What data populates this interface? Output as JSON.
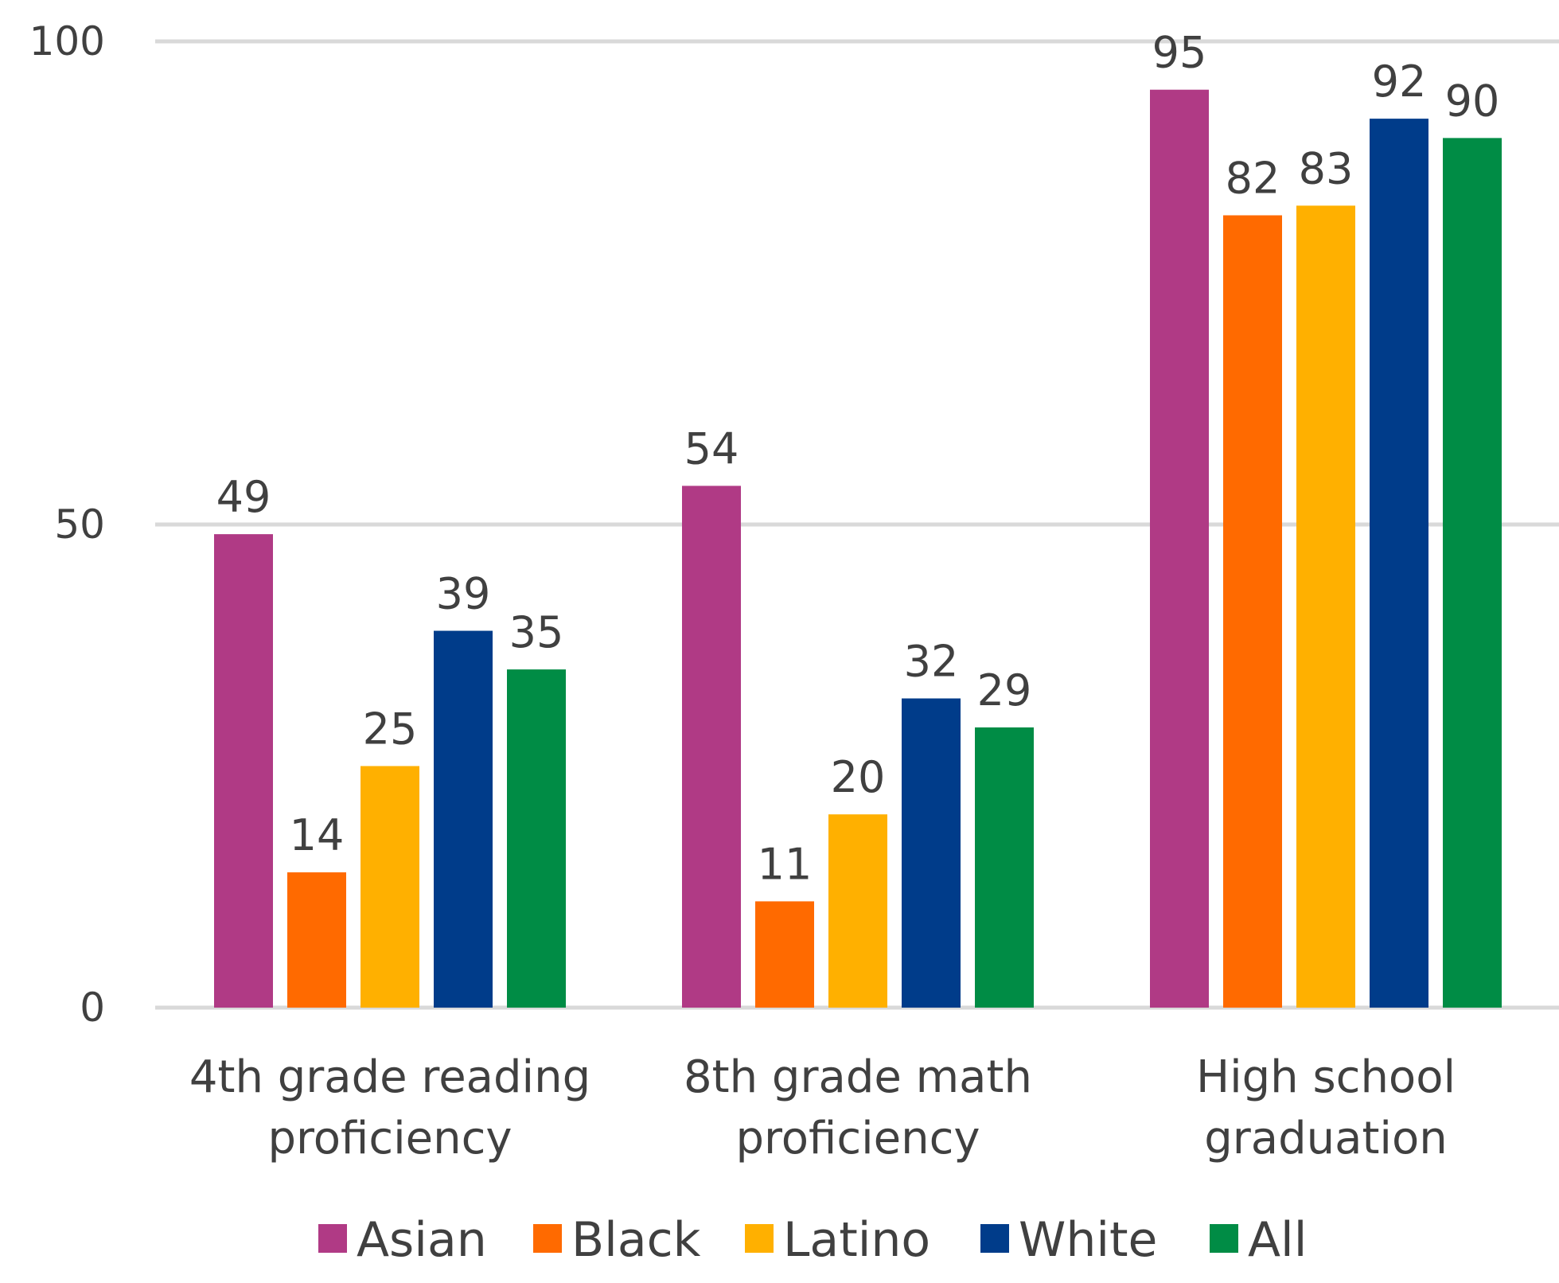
{
  "chart_data": {
    "type": "bar",
    "title": "",
    "xlabel": "",
    "ylabel": "",
    "ylim": [
      0,
      100
    ],
    "yticks": [
      0,
      50,
      100
    ],
    "grid": true,
    "legend_position": "bottom",
    "categories": [
      [
        "4th grade reading",
        "proficiency"
      ],
      [
        "8th grade math",
        "proficiency"
      ],
      [
        "High school",
        "graduation"
      ]
    ],
    "series": [
      {
        "name": "Asian",
        "color": "#b03a85",
        "values": [
          49,
          54,
          95
        ]
      },
      {
        "name": "Black",
        "color": "#ff6a00",
        "values": [
          14,
          11,
          82
        ]
      },
      {
        "name": "Latino",
        "color": "#ffb000",
        "values": [
          25,
          20,
          83
        ]
      },
      {
        "name": "White",
        "color": "#003c8a",
        "values": [
          39,
          32,
          92
        ]
      },
      {
        "name": "All",
        "color": "#008c45",
        "values": [
          35,
          29,
          90
        ]
      }
    ],
    "gridline_color": "#d9d9d9",
    "text_color": "#404040"
  }
}
